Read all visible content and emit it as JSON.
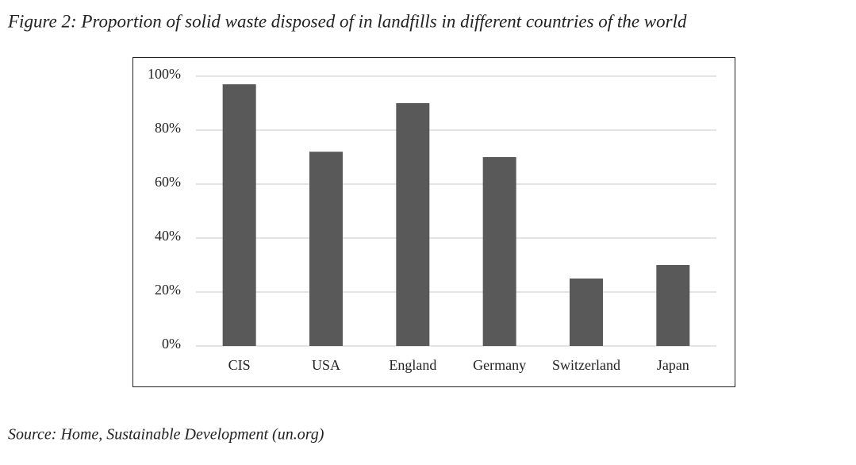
{
  "caption": "Figure 2: Proportion of solid waste disposed of in landfills in different countries of the world",
  "source": "Source: Home, Sustainable Development (un.org)",
  "chart_data": {
    "type": "bar",
    "categories": [
      "CIS",
      "USA",
      "England",
      "Germany",
      "Switzerland",
      "Japan"
    ],
    "values": [
      97,
      72,
      90,
      70,
      25,
      30
    ],
    "color": "#595959",
    "ylim": [
      0,
      100
    ],
    "yticks": [
      {
        "value": 0,
        "label": "0%"
      },
      {
        "value": 20,
        "label": "20%"
      },
      {
        "value": 40,
        "label": "40%"
      },
      {
        "value": 60,
        "label": "60%"
      },
      {
        "value": 80,
        "label": "80%"
      },
      {
        "value": 100,
        "label": "100%"
      }
    ],
    "grid": true
  }
}
